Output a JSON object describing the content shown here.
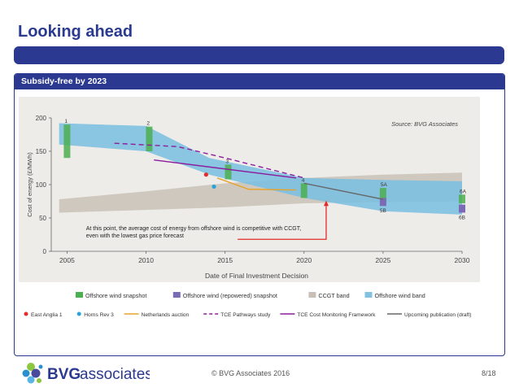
{
  "slide": {
    "title": "Looking ahead",
    "panel_title": "Subsidy-free by 2023",
    "copyright": "© BVG Associates 2016",
    "page": "8/18",
    "logo_text_bold": "BVG",
    "logo_text_regular": "associates",
    "brand_color": "#2b3990"
  },
  "chart_data": {
    "type": "area",
    "ylabel": "Cost of energy (£/MWh)",
    "xlabel": "Date of Final Investment Decision",
    "source": "Source: BVG Associates",
    "xlim": [
      2004,
      2030
    ],
    "ylim": [
      0,
      200
    ],
    "x_ticks": [
      2005,
      2010,
      2015,
      2020,
      2025,
      2030
    ],
    "y_ticks": [
      0,
      50,
      100,
      150,
      200
    ],
    "annotation": "At this point, the average cost of energy from offshore wind is competitive with CCGT, even with the lowest gas price forecast",
    "snapshot_labels": [
      "1",
      "2",
      "3",
      "4",
      "5A",
      "5B",
      "6A",
      "6B"
    ],
    "offshore_band": {
      "x": [
        2004.5,
        2010,
        2014,
        2020,
        2025,
        2030
      ],
      "upper": [
        192,
        188,
        140,
        110,
        107,
        105
      ],
      "lower": [
        160,
        150,
        115,
        80,
        60,
        55
      ]
    },
    "ccgt_band": {
      "x": [
        2004.5,
        2010,
        2015,
        2020,
        2025,
        2030
      ],
      "upper": [
        78,
        90,
        102,
        110,
        115,
        118
      ],
      "lower": [
        58,
        62,
        66,
        72,
        74,
        75
      ]
    },
    "offshore_snapshots": [
      {
        "label": "1",
        "x": 2005,
        "low": 140,
        "high": 190
      },
      {
        "label": "2",
        "x": 2010.2,
        "low": 150,
        "high": 187
      },
      {
        "label": "3",
        "x": 2015.2,
        "low": 108,
        "high": 130
      },
      {
        "label": "4",
        "x": 2020,
        "low": 80,
        "high": 102
      },
      {
        "label": "5A",
        "x": 2025,
        "low": 78,
        "high": 95
      },
      {
        "label": "6A",
        "x": 2030,
        "low": 72,
        "high": 85
      }
    ],
    "repowered_snapshots": [
      {
        "label": "5B",
        "x": 2025,
        "low": 68,
        "high": 80
      },
      {
        "label": "6B",
        "x": 2030,
        "low": 58,
        "high": 70
      }
    ],
    "points": [
      {
        "name": "East Anglia 1",
        "x": 2013.8,
        "y": 115,
        "color": "#e32b2b"
      },
      {
        "name": "Horns Rev 3",
        "x": 2014.3,
        "y": 97,
        "color": "#29a3d9"
      }
    ],
    "series": [
      {
        "name": "Netherlands auction",
        "color": "#e8a32a",
        "dash": "",
        "x": [
          2014.5,
          2016.5,
          2019.5
        ],
        "y": [
          110,
          93,
          92
        ]
      },
      {
        "name": "TCE Pathways study",
        "color": "#8c1d9c",
        "dash": "6,4",
        "x": [
          2008,
          2012,
          2015,
          2018,
          2020
        ],
        "y": [
          162,
          157,
          140,
          122,
          110
        ]
      },
      {
        "name": "TCE Cost Monitoring Framework",
        "color": "#8c1d9c",
        "dash": "",
        "x": [
          2010.5,
          2019.5
        ],
        "y": [
          137,
          110
        ]
      },
      {
        "name": "Upcoming publication (draft)",
        "color": "#666666",
        "dash": "",
        "x": [
          2020,
          2025
        ],
        "y": [
          102,
          78
        ]
      }
    ],
    "legend_row1": [
      {
        "name": "Offshore wind snapshot",
        "color": "#4caf50",
        "kind": "box"
      },
      {
        "name": "Offshore wind (repowered) snapshot",
        "color": "#7b6bb5",
        "kind": "box"
      },
      {
        "name": "CCGT band",
        "color": "#c8c0b5",
        "kind": "box"
      },
      {
        "name": "Offshore wind band",
        "color": "#84c1e0",
        "kind": "box"
      }
    ],
    "legend_row2": [
      {
        "name": "East Anglia 1",
        "color": "#e32b2b",
        "kind": "dot"
      },
      {
        "name": "Horns Rev 3",
        "color": "#29a3d9",
        "kind": "dot"
      },
      {
        "name": "Netherlands auction",
        "color": "#e8a32a",
        "kind": "line"
      },
      {
        "name": "TCE Pathways study",
        "color": "#8c1d9c",
        "kind": "dash"
      },
      {
        "name": "TCE Cost Monitoring Framework",
        "color": "#8c1d9c",
        "kind": "line"
      },
      {
        "name": "Upcoming publication (draft)",
        "color": "#666666",
        "kind": "line"
      }
    ]
  }
}
